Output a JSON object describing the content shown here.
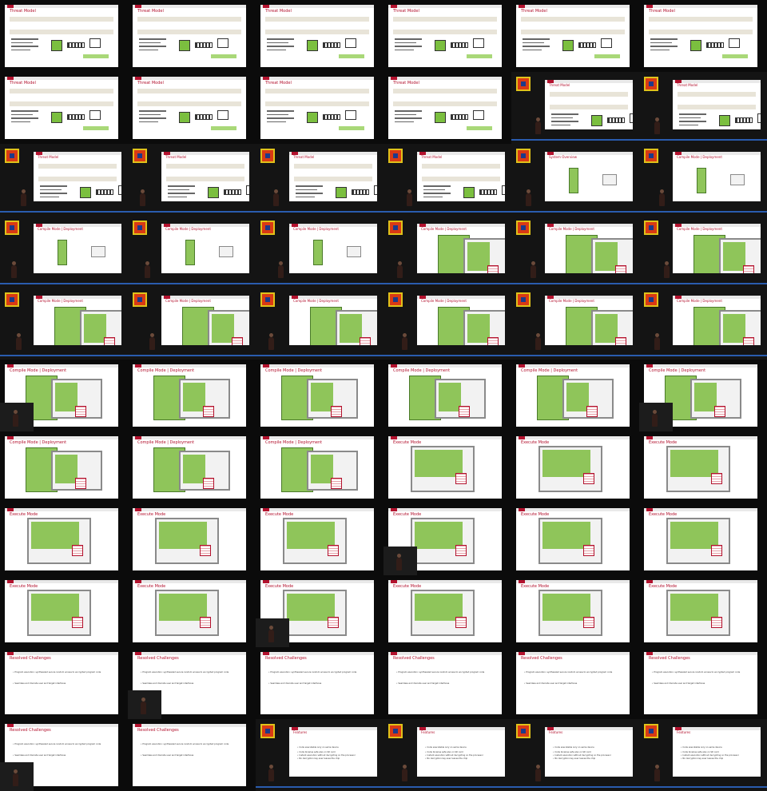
{
  "titles": {
    "threat": "Threat Model",
    "overview": "System Overview",
    "compile": "Compile Mode | Deployment",
    "execute": "Execute Mode",
    "resolved": "Resolved Challenges",
    "features": "Features"
  },
  "threat": {
    "band1": "Any remote attacker",
    "band2": "Local adversary at processor and peripherals",
    "b1": "with physical access",
    "b2": "can read and manipulate on- and off-chip components",
    "tag": "secure (consistent logic)"
  },
  "resolved": {
    "b1": "Program execution: synthesized secure random access to encrypted program code",
    "b2": "Seamless and discrete user and target interfaces"
  },
  "features": {
    "b1": "Code executable only on same device",
    "b2": "Code binaries safe also on SD card",
    "b3": "Instant execution without decrypting on the processor",
    "b4": "No decryption key ever leaves the chip"
  },
  "tiles": [
    {
      "k": "threat",
      "m": "full"
    },
    {
      "k": "threat",
      "m": "full"
    },
    {
      "k": "threat",
      "m": "full"
    },
    {
      "k": "threat",
      "m": "full"
    },
    {
      "k": "threat",
      "m": "full"
    },
    {
      "k": "threat",
      "m": "full"
    },
    {
      "k": "threat",
      "m": "full"
    },
    {
      "k": "threat",
      "m": "full"
    },
    {
      "k": "threat",
      "m": "full"
    },
    {
      "k": "threat",
      "m": "full"
    },
    {
      "k": "threat",
      "m": "video"
    },
    {
      "k": "threat",
      "m": "video"
    },
    {
      "k": "threat",
      "m": "video"
    },
    {
      "k": "threat",
      "m": "video"
    },
    {
      "k": "threat",
      "m": "video"
    },
    {
      "k": "threat",
      "m": "video"
    },
    {
      "k": "overview",
      "m": "video"
    },
    {
      "k": "compile-s",
      "m": "video"
    },
    {
      "k": "compile-s",
      "m": "video"
    },
    {
      "k": "compile-s",
      "m": "video"
    },
    {
      "k": "compile-s",
      "m": "video"
    },
    {
      "k": "compile",
      "m": "video"
    },
    {
      "k": "compile",
      "m": "video"
    },
    {
      "k": "compile",
      "m": "video"
    },
    {
      "k": "compile",
      "m": "video"
    },
    {
      "k": "compile",
      "m": "video"
    },
    {
      "k": "compile",
      "m": "video"
    },
    {
      "k": "compile",
      "m": "video"
    },
    {
      "k": "compile",
      "m": "video"
    },
    {
      "k": "compile",
      "m": "video"
    },
    {
      "k": "compile",
      "m": "full"
    },
    {
      "k": "compile",
      "m": "full"
    },
    {
      "k": "compile",
      "m": "full"
    },
    {
      "k": "compile",
      "m": "full"
    },
    {
      "k": "compile",
      "m": "full"
    },
    {
      "k": "compile",
      "m": "full"
    },
    {
      "k": "compile",
      "m": "full"
    },
    {
      "k": "compile",
      "m": "full"
    },
    {
      "k": "compile",
      "m": "full"
    },
    {
      "k": "execute",
      "m": "full"
    },
    {
      "k": "execute",
      "m": "full"
    },
    {
      "k": "execute",
      "m": "full"
    },
    {
      "k": "execute",
      "m": "full"
    },
    {
      "k": "execute",
      "m": "full"
    },
    {
      "k": "execute",
      "m": "full"
    },
    {
      "k": "execute",
      "m": "full"
    },
    {
      "k": "execute",
      "m": "full"
    },
    {
      "k": "execute",
      "m": "full"
    },
    {
      "k": "execute",
      "m": "full"
    },
    {
      "k": "execute",
      "m": "full"
    },
    {
      "k": "execute",
      "m": "full"
    },
    {
      "k": "execute",
      "m": "full"
    },
    {
      "k": "execute",
      "m": "full"
    },
    {
      "k": "execute",
      "m": "full"
    },
    {
      "k": "resolved",
      "m": "full"
    },
    {
      "k": "resolved",
      "m": "full"
    },
    {
      "k": "resolved",
      "m": "full"
    },
    {
      "k": "resolved",
      "m": "full"
    },
    {
      "k": "resolved",
      "m": "full"
    },
    {
      "k": "resolved",
      "m": "full"
    },
    {
      "k": "resolved",
      "m": "full"
    },
    {
      "k": "resolved",
      "m": "full"
    },
    {
      "k": "features",
      "m": "video"
    },
    {
      "k": "features",
      "m": "video"
    },
    {
      "k": "features",
      "m": "video"
    },
    {
      "k": "features",
      "m": "video"
    }
  ]
}
